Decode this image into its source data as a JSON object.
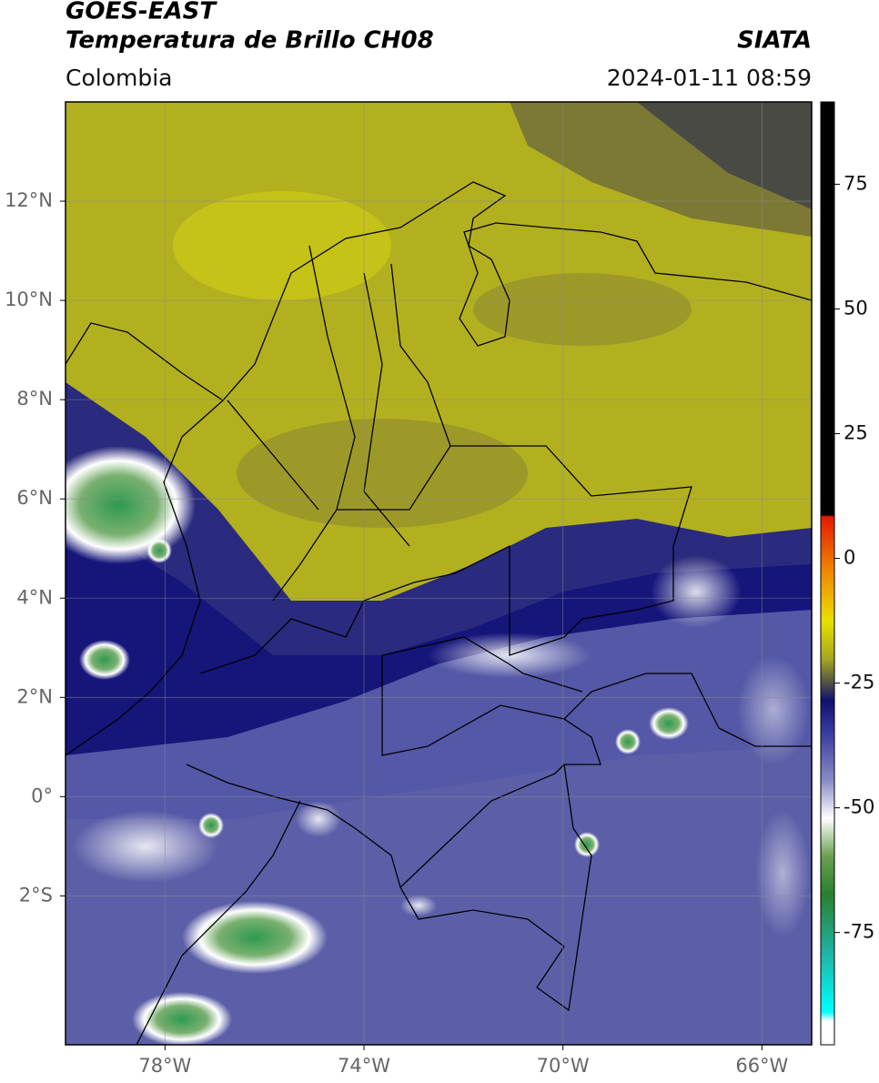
{
  "header": {
    "title": "GOES-EAST",
    "subtitle": "Temperatura de Brillo CH08",
    "source": "SIATA",
    "region": "Colombia",
    "datetime": "2024-01-11 08:59"
  },
  "map": {
    "lonlim": [
      -80,
      -65
    ],
    "latlim": [
      -5,
      14
    ],
    "lonticks": [
      {
        "value": -78,
        "label": "78°W"
      },
      {
        "value": -74,
        "label": "74°W"
      },
      {
        "value": -70,
        "label": "70°W"
      },
      {
        "value": -66,
        "label": "66°W"
      }
    ],
    "latticks": [
      {
        "value": 12,
        "label": "12°N"
      },
      {
        "value": 10,
        "label": "10°N"
      },
      {
        "value": 8,
        "label": "8°N"
      },
      {
        "value": 6,
        "label": "6°N"
      },
      {
        "value": 4,
        "label": "4°N"
      },
      {
        "value": 2,
        "label": "2°N"
      },
      {
        "value": 0,
        "label": "0°"
      },
      {
        "value": -2,
        "label": "2°S"
      }
    ],
    "grid": true
  },
  "colorbar": {
    "clim": [
      -97.5,
      91.5
    ],
    "ticks": [
      75,
      50,
      25,
      0,
      -25,
      -50,
      -75
    ]
  }
}
